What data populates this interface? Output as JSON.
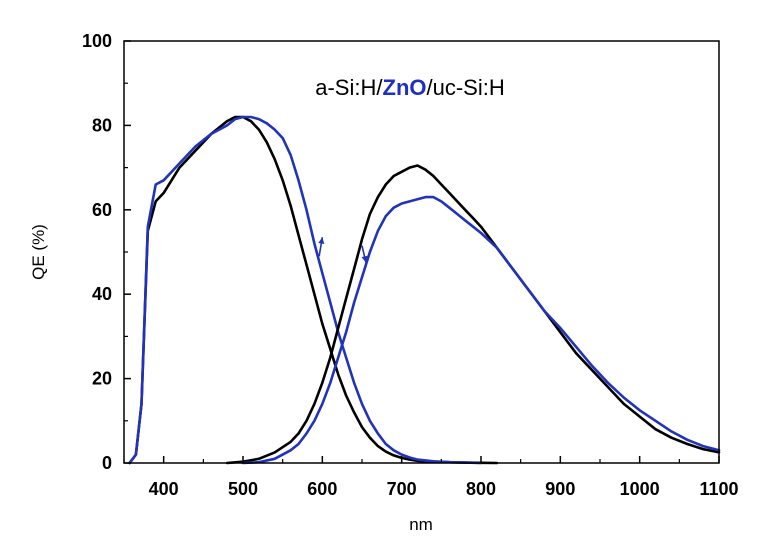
{
  "chart_data": {
    "type": "line",
    "title_parts": [
      {
        "text": "a-Si:H/",
        "color": "#000000",
        "bold": false
      },
      {
        "text": "ZnO",
        "color": "#1f2fbf",
        "bold": true
      },
      {
        "text": "/uc-Si:H",
        "color": "#000000",
        "bold": false
      }
    ],
    "xlabel": "nm",
    "ylabel": "QE (%)",
    "xlim": [
      350,
      1100
    ],
    "ylim": [
      0,
      100
    ],
    "xticks": [
      400,
      500,
      600,
      700,
      800,
      900,
      1000,
      1100
    ],
    "yticks": [
      0,
      20,
      40,
      60,
      80,
      100
    ],
    "grid": false,
    "series": [
      {
        "name": "a-Si:H top cell (black)",
        "color": "#000000",
        "x": [
          357,
          365,
          372,
          380,
          390,
          400,
          420,
          440,
          460,
          480,
          490,
          500,
          510,
          520,
          530,
          540,
          550,
          560,
          570,
          580,
          590,
          600,
          610,
          620,
          630,
          640,
          650,
          660,
          670,
          680,
          690,
          700,
          710,
          720,
          740,
          760,
          780,
          800,
          820
        ],
        "y": [
          0,
          2,
          14,
          55,
          62,
          64,
          70,
          74,
          78,
          81,
          82,
          82,
          81,
          79,
          76,
          72,
          67,
          61,
          54,
          47,
          40,
          33,
          27,
          21,
          16,
          12,
          8.5,
          6,
          4,
          2.7,
          1.8,
          1.2,
          0.8,
          0.5,
          0.3,
          0.2,
          0.1,
          0.05,
          0
        ]
      },
      {
        "name": "a-Si:H top cell (blue)",
        "color": "#2233bb",
        "x": [
          357,
          365,
          372,
          380,
          390,
          400,
          420,
          440,
          460,
          480,
          490,
          500,
          510,
          520,
          530,
          540,
          550,
          560,
          570,
          580,
          590,
          600,
          610,
          620,
          630,
          640,
          650,
          660,
          670,
          680,
          690,
          700,
          710,
          720,
          740,
          760,
          780,
          800
        ],
        "y": [
          0,
          2,
          14,
          56,
          66,
          67,
          71,
          75,
          78,
          80,
          81.5,
          82,
          82,
          81.5,
          80.5,
          79,
          77,
          73,
          67,
          60,
          52,
          45,
          38,
          31,
          25,
          19,
          14,
          10,
          7,
          4.5,
          3,
          2,
          1.3,
          0.8,
          0.4,
          0.2,
          0.1,
          0
        ]
      },
      {
        "name": "uc-Si:H bottom cell (black)",
        "color": "#000000",
        "x": [
          480,
          500,
          520,
          540,
          560,
          570,
          580,
          590,
          600,
          610,
          620,
          630,
          640,
          650,
          660,
          670,
          680,
          690,
          700,
          710,
          720,
          730,
          740,
          750,
          760,
          770,
          780,
          790,
          800,
          820,
          840,
          860,
          880,
          900,
          920,
          940,
          960,
          980,
          1000,
          1020,
          1040,
          1060,
          1080,
          1100
        ],
        "y": [
          0,
          0.3,
          1,
          2.5,
          5,
          7,
          10,
          14,
          19,
          25,
          32,
          39,
          46,
          53,
          59,
          63,
          66,
          68,
          69,
          70,
          70.5,
          69.5,
          68,
          66,
          64,
          62,
          60,
          58,
          56,
          51,
          46,
          41,
          36,
          31,
          26,
          22,
          18,
          14,
          11,
          8,
          6,
          4.5,
          3.3,
          2.5
        ]
      },
      {
        "name": "uc-Si:H bottom cell (blue)",
        "color": "#2233bb",
        "x": [
          500,
          520,
          540,
          560,
          570,
          580,
          590,
          600,
          610,
          620,
          630,
          640,
          650,
          660,
          670,
          680,
          690,
          700,
          710,
          720,
          730,
          740,
          750,
          760,
          770,
          780,
          790,
          800,
          820,
          840,
          860,
          880,
          900,
          920,
          940,
          960,
          980,
          1000,
          1020,
          1040,
          1060,
          1080,
          1100
        ],
        "y": [
          0,
          0.2,
          1,
          3,
          4.5,
          7,
          10,
          14,
          19,
          25,
          31,
          38,
          44,
          50,
          55,
          58.5,
          60.5,
          61.5,
          62,
          62.5,
          63,
          63,
          62,
          60.5,
          59,
          57.5,
          56,
          54.5,
          51,
          46,
          41,
          36,
          32,
          27.5,
          23,
          19,
          15.5,
          12.5,
          10,
          7.5,
          5.5,
          4,
          3
        ]
      }
    ],
    "annotations": [
      {
        "type": "arrow",
        "color": "#2233bb",
        "from": [
          596,
          49
        ],
        "to": [
          600,
          53.5
        ]
      },
      {
        "type": "arrow",
        "color": "#2233bb",
        "from": [
          650,
          51.5
        ],
        "to": [
          655,
          47.5
        ]
      }
    ]
  }
}
